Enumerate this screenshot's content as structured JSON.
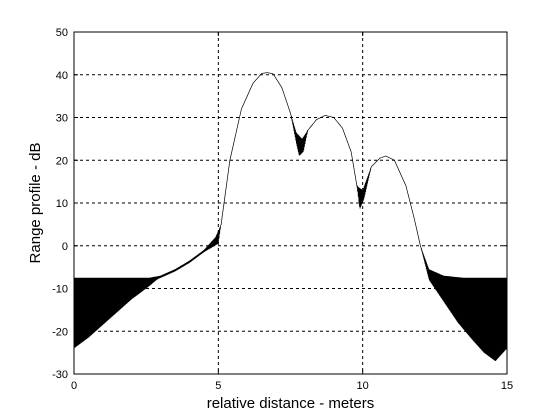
{
  "chart_data": {
    "type": "line",
    "title": "",
    "xlabel": "relative distance - meters",
    "ylabel": "Range profile - dB",
    "xlim": [
      0,
      15
    ],
    "ylim": [
      -30,
      50
    ],
    "xticks": [
      0,
      5,
      10,
      15
    ],
    "yticks": [
      -30,
      -20,
      -10,
      0,
      10,
      20,
      30,
      40,
      50
    ],
    "xtick_labels": [
      "0",
      "5",
      "10",
      "15"
    ],
    "ytick_labels": [
      "-30",
      "-20",
      "-10",
      "0",
      "10",
      "20",
      "30",
      "40",
      "50"
    ],
    "grid": true,
    "legend": "none",
    "series": [
      {
        "line_color": "#000000",
        "envelope_top": [
          [
            0.0,
            -7.5
          ],
          [
            1.0,
            -7.5
          ],
          [
            2.0,
            -7.5
          ],
          [
            2.6,
            -7.5
          ],
          [
            3.0,
            -7.0
          ],
          [
            3.5,
            -5.5
          ],
          [
            4.0,
            -3.5
          ],
          [
            4.5,
            -1.0
          ],
          [
            4.9,
            2.0
          ],
          [
            5.1,
            5.0
          ],
          [
            5.4,
            20.0
          ],
          [
            5.8,
            32.0
          ],
          [
            6.2,
            38.0
          ],
          [
            6.5,
            40.3
          ],
          [
            6.7,
            40.5
          ],
          [
            6.9,
            40.2
          ],
          [
            7.2,
            37.0
          ],
          [
            7.5,
            31.0
          ],
          [
            7.7,
            26.5
          ],
          [
            7.9,
            25.0
          ],
          [
            8.1,
            27.0
          ],
          [
            8.4,
            29.5
          ],
          [
            8.7,
            30.5
          ],
          [
            9.0,
            30.0
          ],
          [
            9.3,
            27.5
          ],
          [
            9.6,
            22.0
          ],
          [
            9.8,
            14.0
          ],
          [
            10.0,
            13.0
          ],
          [
            10.3,
            18.5
          ],
          [
            10.6,
            20.5
          ],
          [
            10.8,
            21.0
          ],
          [
            11.1,
            20.0
          ],
          [
            11.5,
            14.0
          ],
          [
            11.8,
            6.0
          ],
          [
            12.0,
            0.0
          ],
          [
            12.3,
            -5.5
          ],
          [
            12.8,
            -7.0
          ],
          [
            13.5,
            -7.5
          ],
          [
            14.0,
            -7.5
          ],
          [
            15.0,
            -7.5
          ]
        ],
        "envelope_bottom": [
          [
            0.0,
            -24.0
          ],
          [
            0.5,
            -21.5
          ],
          [
            1.0,
            -18.5
          ],
          [
            1.5,
            -15.5
          ],
          [
            2.0,
            -12.5
          ],
          [
            2.5,
            -10.0
          ],
          [
            2.9,
            -7.8
          ],
          [
            3.5,
            -6.0
          ],
          [
            4.0,
            -4.0
          ],
          [
            4.5,
            -1.5
          ],
          [
            5.0,
            0.5
          ],
          [
            5.4,
            20.0
          ],
          [
            5.8,
            32.0
          ],
          [
            6.2,
            38.0
          ],
          [
            6.5,
            40.3
          ],
          [
            6.7,
            40.5
          ],
          [
            6.9,
            40.2
          ],
          [
            7.2,
            37.0
          ],
          [
            7.5,
            31.0
          ],
          [
            7.7,
            24.0
          ],
          [
            7.8,
            21.0
          ],
          [
            7.95,
            22.0
          ],
          [
            8.1,
            27.0
          ],
          [
            8.4,
            29.5
          ],
          [
            8.7,
            30.5
          ],
          [
            9.0,
            30.0
          ],
          [
            9.3,
            27.5
          ],
          [
            9.6,
            22.0
          ],
          [
            9.8,
            14.0
          ],
          [
            9.9,
            8.5
          ],
          [
            10.05,
            11.0
          ],
          [
            10.3,
            18.5
          ],
          [
            10.6,
            20.5
          ],
          [
            10.8,
            21.0
          ],
          [
            11.1,
            20.0
          ],
          [
            11.5,
            14.0
          ],
          [
            11.8,
            6.0
          ],
          [
            12.0,
            0.0
          ],
          [
            12.3,
            -8.0
          ],
          [
            12.8,
            -13.0
          ],
          [
            13.3,
            -18.0
          ],
          [
            13.8,
            -22.0
          ],
          [
            14.2,
            -25.0
          ],
          [
            14.6,
            -27.0
          ],
          [
            15.0,
            -24.0
          ]
        ]
      }
    ]
  }
}
